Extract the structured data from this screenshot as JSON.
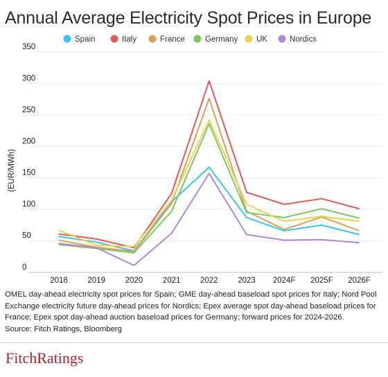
{
  "title": "Annual Average Electricity Spot Prices in Europe",
  "footnote": {
    "text": "OMEL day-ahead electricity spot prices for Spain; GME day-ahead baseload spot prices for Italy; Nord Pool Exchange electricity future day-ahead prices for Nordics; Epex average spot day-ahead baseload prices for France; Epex spot day-ahead auction baseload prices for Germany; forward prices for 2024-2026.",
    "source": "Source: Fitch Ratings, Bloomberg"
  },
  "brand": "FitchRatings",
  "chart_data": {
    "type": "line",
    "title": "Annual Average Electricity Spot Prices in Europe",
    "ylabel": "(EUR/MWh)",
    "xlabel": "",
    "categories": [
      "2018",
      "2019",
      "2020",
      "2021",
      "2022",
      "2023",
      "2024F",
      "2025F",
      "2026F"
    ],
    "ylim": [
      0,
      350
    ],
    "yticks": [
      0,
      50,
      100,
      150,
      200,
      250,
      300,
      350
    ],
    "grid": true,
    "legend": "top",
    "series": [
      {
        "name": "Spain",
        "color": "#3cc4ea",
        "values": [
          57,
          48,
          34,
          112,
          167,
          87,
          66,
          75,
          60
        ]
      },
      {
        "name": "Italy",
        "color": "#e05a56",
        "values": [
          61,
          53,
          39,
          125,
          304,
          127,
          108,
          117,
          101
        ]
      },
      {
        "name": "France",
        "color": "#dea152",
        "values": [
          51,
          40,
          33,
          109,
          276,
          97,
          68,
          88,
          66
        ]
      },
      {
        "name": "Germany",
        "color": "#7cc764",
        "values": [
          44,
          38,
          31,
          97,
          236,
          95,
          87,
          101,
          86
        ]
      },
      {
        "name": "UK",
        "color": "#ead350",
        "values": [
          67,
          43,
          41,
          114,
          242,
          108,
          81,
          89,
          81
        ]
      },
      {
        "name": "Nordics",
        "color": "#b287d6",
        "values": [
          46,
          39,
          11,
          62,
          157,
          60,
          51,
          52,
          47
        ]
      }
    ]
  }
}
